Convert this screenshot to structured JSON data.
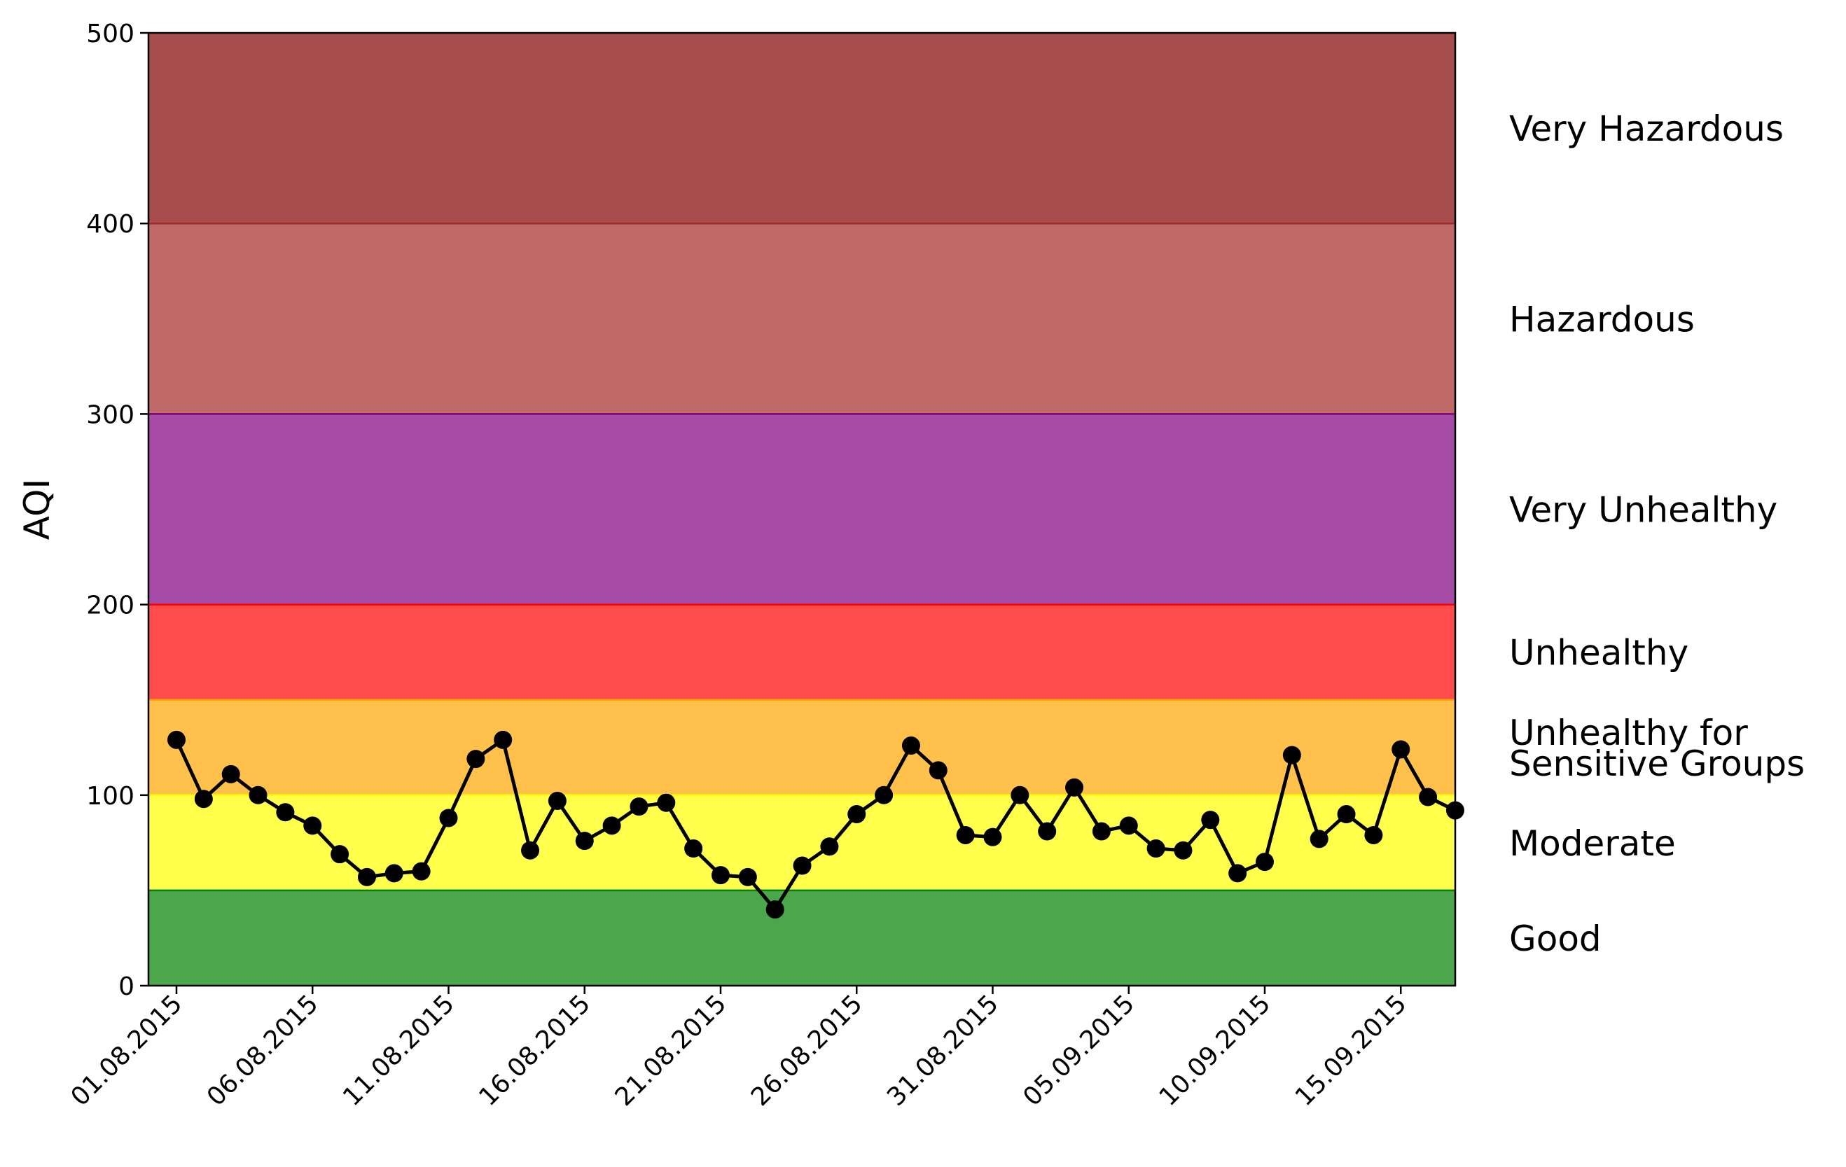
{
  "chart_data": {
    "type": "line",
    "title": "",
    "xlabel": "",
    "ylabel": "AQI",
    "ylim": [
      0,
      500
    ],
    "yticks": [
      0,
      100,
      200,
      300,
      400,
      500
    ],
    "xtick_labels": [
      "01.08.2015",
      "06.08.2015",
      "11.08.2015",
      "16.08.2015",
      "21.08.2015",
      "26.08.2015",
      "31.08.2015",
      "05.09.2015",
      "10.09.2015",
      "15.09.2015"
    ],
    "grid": false,
    "x": [
      "01.08.2015",
      "02.08.2015",
      "03.08.2015",
      "04.08.2015",
      "05.08.2015",
      "06.08.2015",
      "07.08.2015",
      "08.08.2015",
      "09.08.2015",
      "10.08.2015",
      "11.08.2015",
      "12.08.2015",
      "13.08.2015",
      "14.08.2015",
      "15.08.2015",
      "16.08.2015",
      "17.08.2015",
      "18.08.2015",
      "19.08.2015",
      "20.08.2015",
      "21.08.2015",
      "22.08.2015",
      "23.08.2015",
      "24.08.2015",
      "25.08.2015",
      "26.08.2015",
      "27.08.2015",
      "28.08.2015",
      "29.08.2015",
      "30.08.2015",
      "31.08.2015",
      "01.09.2015",
      "02.09.2015",
      "03.09.2015",
      "04.09.2015",
      "05.09.2015",
      "06.09.2015",
      "07.09.2015",
      "08.09.2015",
      "09.09.2015",
      "10.09.2015",
      "11.09.2015",
      "12.09.2015",
      "13.09.2015",
      "14.09.2015",
      "15.09.2015",
      "16.09.2015",
      "17.09.2015"
    ],
    "series": [
      {
        "values": [
          129,
          98,
          111,
          100,
          91,
          84,
          69,
          57,
          59,
          60,
          88,
          119,
          129,
          71,
          97,
          76,
          84,
          94,
          96,
          72,
          58,
          57,
          40,
          63,
          73,
          90,
          100,
          126,
          113,
          79,
          78,
          100,
          81,
          104,
          81,
          84,
          72,
          71,
          87,
          59,
          65,
          121,
          77,
          90,
          79,
          124,
          99,
          92
        ],
        "color": "#000000"
      }
    ],
    "bands": [
      {
        "label": "Good",
        "min": 0,
        "max": 50,
        "color": "#008000"
      },
      {
        "label": "Moderate",
        "min": 50,
        "max": 100,
        "color": "#ffff00"
      },
      {
        "label": "Unhealthy for\nSensitive Groups",
        "min": 100,
        "max": 150,
        "color": "#ffa500"
      },
      {
        "label": "Unhealthy",
        "min": 150,
        "max": 200,
        "color": "#ff0000"
      },
      {
        "label": "Very Unhealthy",
        "min": 200,
        "max": 300,
        "color": "#800080"
      },
      {
        "label": "Hazardous",
        "min": 300,
        "max": 400,
        "color": "#a52a2a"
      },
      {
        "label": "Very Hazardous",
        "min": 400,
        "max": 500,
        "color": "#800000"
      }
    ]
  }
}
